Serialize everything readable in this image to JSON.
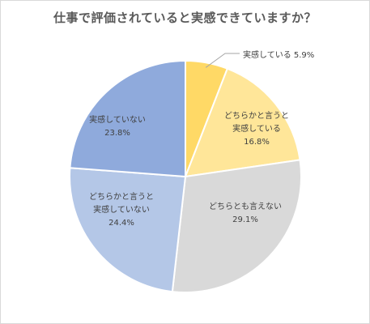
{
  "chart_data": {
    "type": "pie",
    "title": "仕事で評価されていると実感できていますか？",
    "series": [
      {
        "label": [
          "実感している 5.9%"
        ],
        "value": 5.9,
        "color": "#ffd966"
      },
      {
        "label": [
          "どちらかと言うと",
          "実感している",
          "16.8%"
        ],
        "value": 16.8,
        "color": "#ffe699"
      },
      {
        "label": [
          "どちらとも言えない",
          "29.1%"
        ],
        "value": 29.1,
        "color": "#d9d9d9"
      },
      {
        "label": [
          "どちらかと言うと",
          "実感していない",
          "24.4%"
        ],
        "value": 24.4,
        "color": "#b4c7e7"
      },
      {
        "label": [
          "実感していない",
          "23.8%"
        ],
        "value": 23.8,
        "color": "#8faadc"
      }
    ],
    "start": "top",
    "direction": "clockwise"
  }
}
